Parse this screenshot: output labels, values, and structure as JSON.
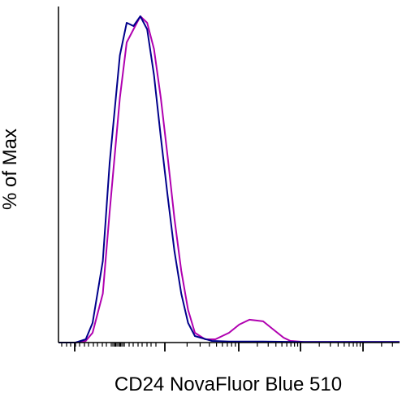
{
  "chart_data": {
    "type": "line",
    "title": "",
    "xlabel": "CD24 NovaFluor Blue 510",
    "ylabel": "% of Max",
    "xscale": "biexponential",
    "xlim": [
      0,
      1
    ],
    "ylim": [
      0,
      100
    ],
    "grid": false,
    "legend": "none",
    "tick_labels": "none",
    "series": [
      {
        "color": "#00008B",
        "x": [
          0.0,
          0.05,
          0.08,
          0.1,
          0.13,
          0.15,
          0.18,
          0.2,
          0.22,
          0.24,
          0.26,
          0.28,
          0.3,
          0.32,
          0.34,
          0.36,
          0.38,
          0.4,
          0.45,
          0.5,
          0.55,
          0.6,
          0.7,
          0.8,
          0.9,
          1.0
        ],
        "values": [
          0,
          0,
          1,
          6,
          25,
          55,
          88,
          98,
          97,
          100,
          96,
          82,
          63,
          45,
          28,
          15,
          6,
          2,
          0.5,
          0.3,
          0.3,
          0.3,
          0.2,
          0.2,
          0.2,
          0.2
        ]
      },
      {
        "color": "#B000B0",
        "x": [
          0.0,
          0.05,
          0.08,
          0.1,
          0.13,
          0.15,
          0.18,
          0.2,
          0.22,
          0.24,
          0.26,
          0.28,
          0.3,
          0.32,
          0.34,
          0.36,
          0.38,
          0.4,
          0.43,
          0.46,
          0.5,
          0.53,
          0.56,
          0.6,
          0.63,
          0.66,
          0.68,
          0.72,
          0.8,
          0.9,
          1.0
        ],
        "values": [
          0,
          0,
          0.5,
          3,
          15,
          40,
          75,
          92,
          96,
          100,
          98,
          90,
          75,
          57,
          38,
          22,
          10,
          3,
          1,
          1,
          3,
          5.5,
          7,
          6.5,
          4,
          1.5,
          0.5,
          0.2,
          0.2,
          0.2,
          0.2
        ]
      }
    ]
  }
}
